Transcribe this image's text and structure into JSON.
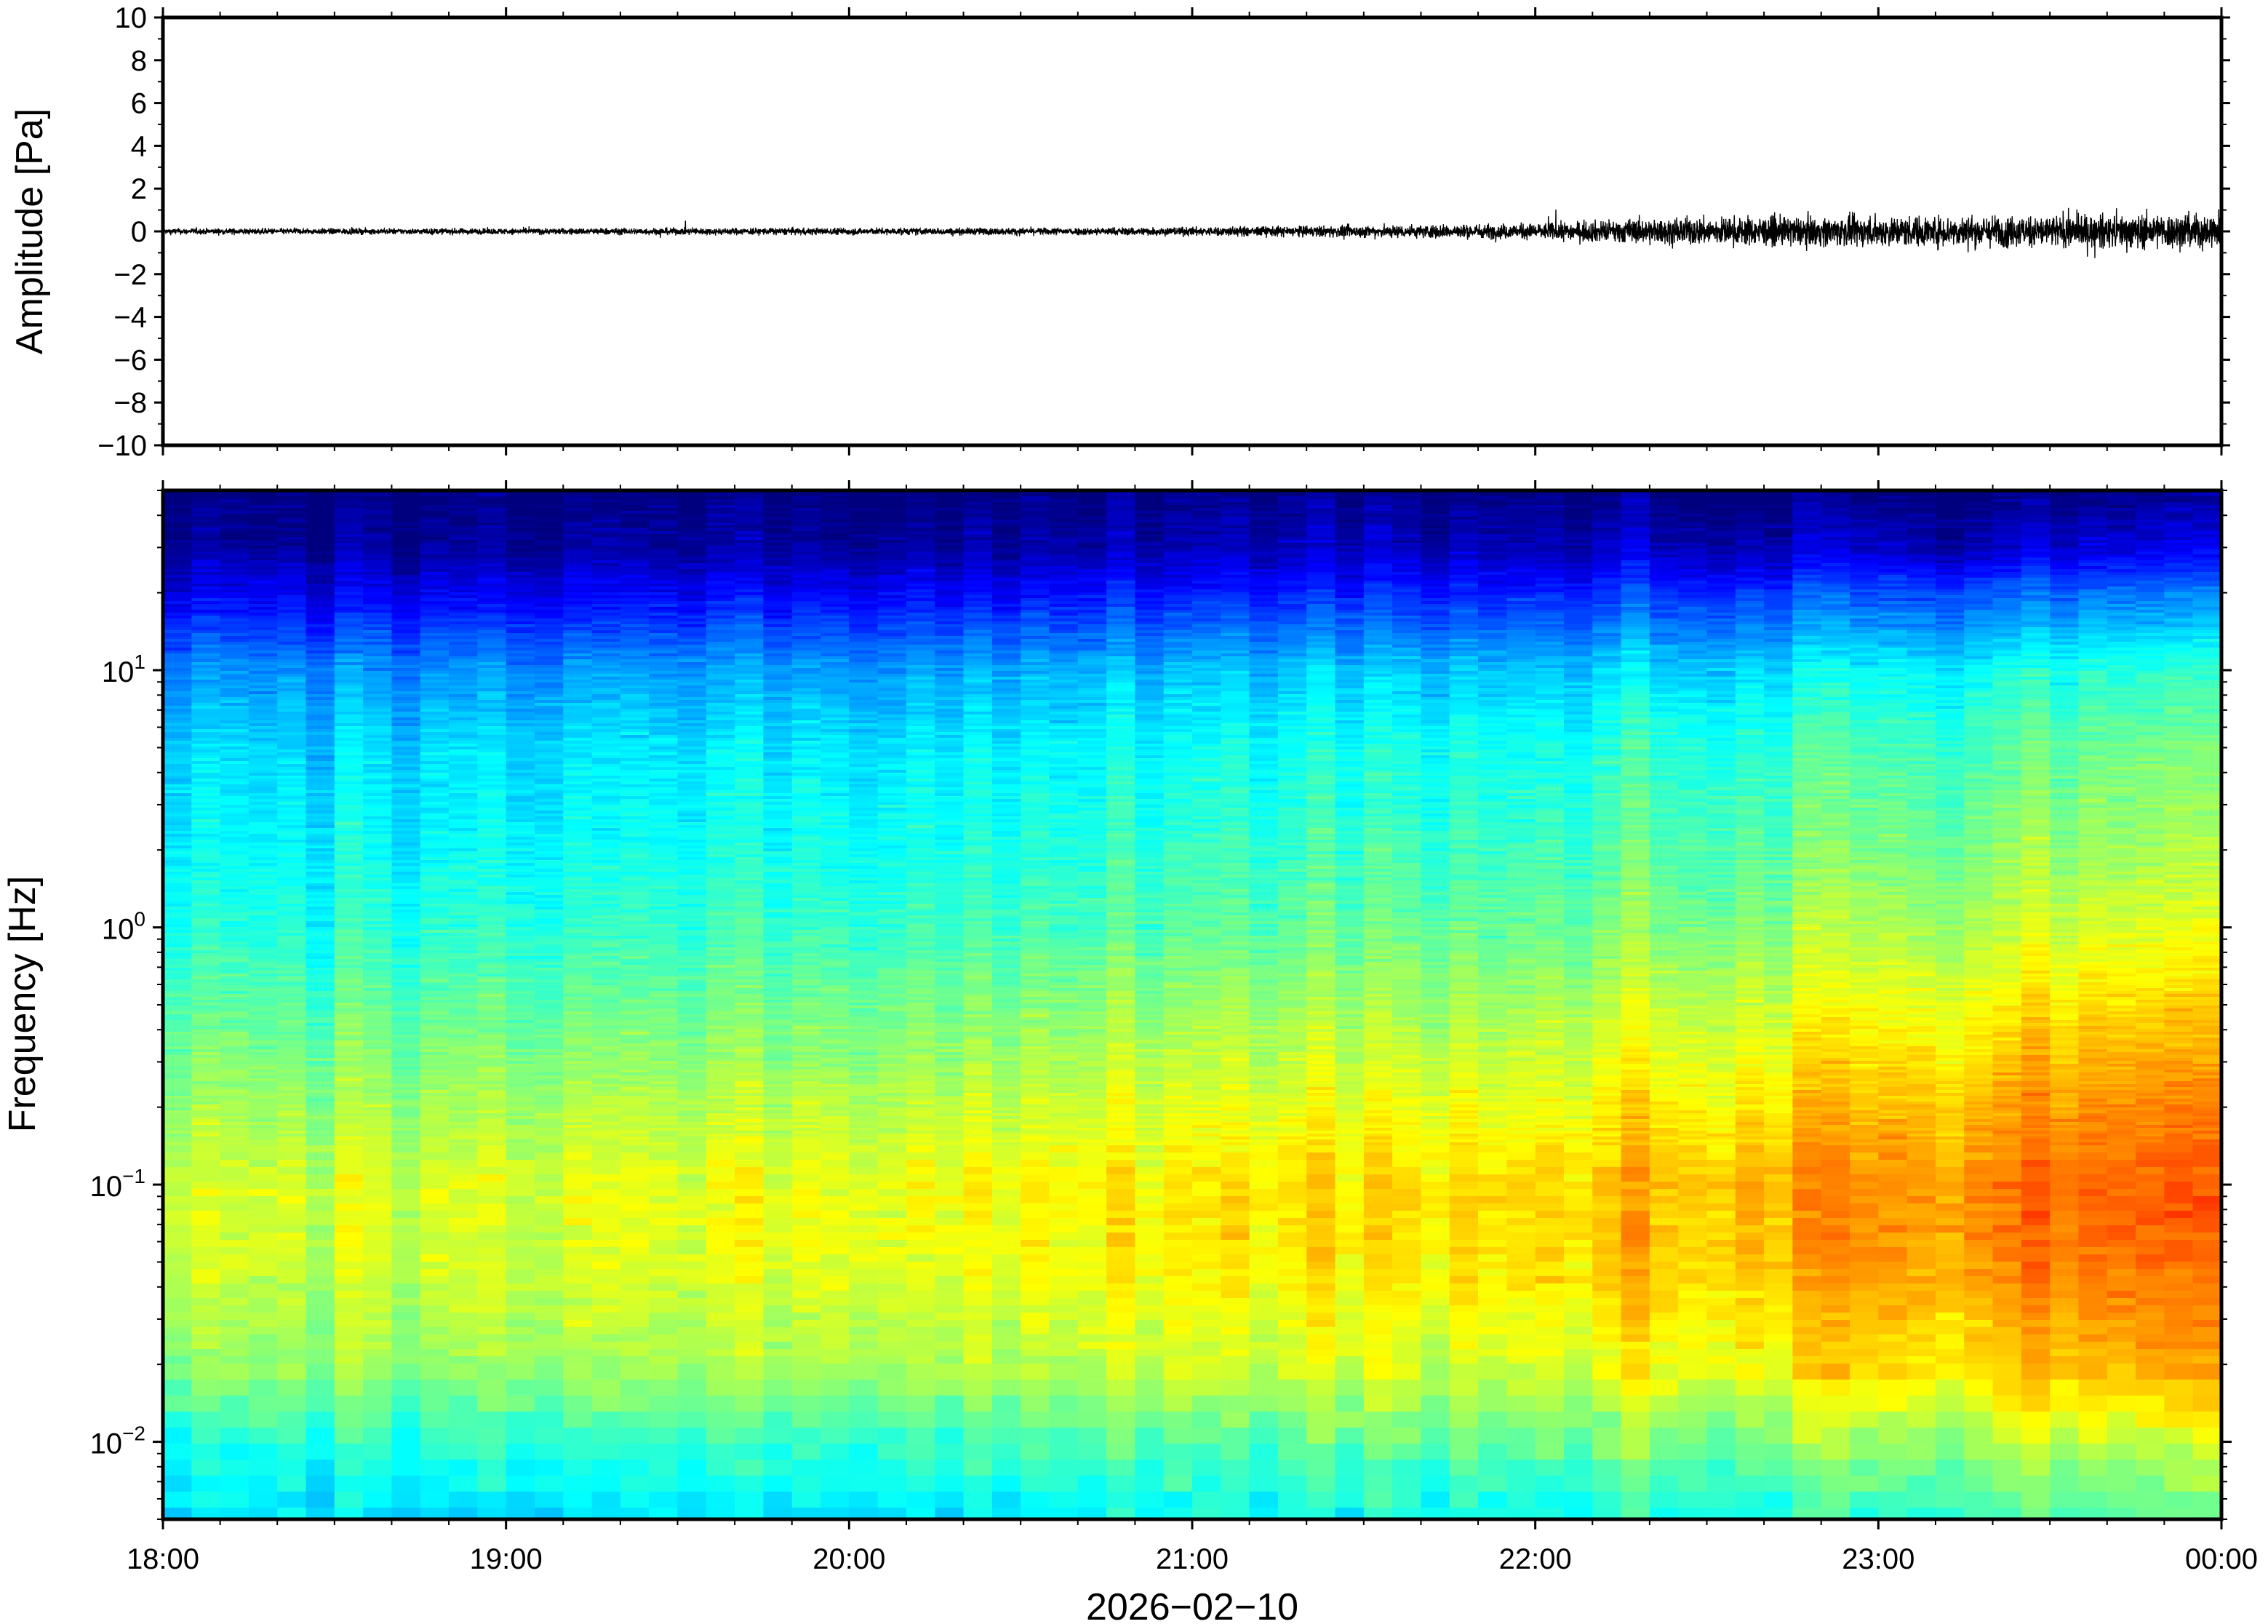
{
  "chart_data": [
    {
      "type": "line",
      "panel": "waveform",
      "ylabel": "Amplitude [Pa]",
      "ylim": [
        -10,
        10
      ],
      "yticks": [
        10,
        8,
        6,
        4,
        2,
        0,
        -2,
        -4,
        -6,
        -8,
        -10
      ],
      "ytick_labels": [
        "10",
        "8",
        "6",
        "4",
        "2",
        "0",
        "−2",
        "−4",
        "−6",
        "−8",
        "−10"
      ],
      "xlim": [
        "18:00",
        "00:00"
      ],
      "grid": false,
      "envelope": {
        "x_hours": [
          0,
          0.5,
          1.0,
          1.5,
          2.0,
          2.5,
          3.0,
          3.5,
          4.0,
          4.25,
          4.5,
          5.0,
          5.5,
          6.0
        ],
        "amplitude_pa": [
          0.3,
          0.3,
          0.3,
          0.35,
          0.35,
          0.35,
          0.45,
          0.6,
          0.8,
          1.2,
          1.4,
          1.5,
          1.6,
          1.8
        ]
      },
      "line_color": "#000000"
    },
    {
      "type": "heatmap",
      "panel": "spectrogram",
      "ylabel": "Frequency [Hz]",
      "yscale": "log",
      "ylim": [
        0.005,
        50
      ],
      "yticks": [
        10,
        1,
        0.1,
        0.01
      ],
      "ytick_labels": [
        {
          "base": "10",
          "exp": "1"
        },
        {
          "base": "10",
          "exp": "0"
        },
        {
          "base": "10",
          "exp": "−1"
        },
        {
          "base": "10",
          "exp": "−2"
        }
      ],
      "xlabel": "2026−02−10",
      "xticks": [
        "18:00",
        "19:00",
        "20:00",
        "21:00",
        "22:00",
        "23:00",
        "00:00"
      ],
      "colormap": "jet",
      "colormap_stops": [
        "#00007f",
        "#0000ff",
        "#007fff",
        "#00ffff",
        "#7fff7f",
        "#ffff00",
        "#ff7f00",
        "#ff0000"
      ],
      "power_profile": {
        "freq_hz": [
          50,
          30,
          20,
          10,
          5,
          2,
          1,
          0.5,
          0.2,
          0.1,
          0.05,
          0.02,
          0.01,
          0.005
        ],
        "power_18h": [
          0.0,
          0.03,
          0.12,
          0.3,
          0.38,
          0.42,
          0.46,
          0.52,
          0.6,
          0.66,
          0.65,
          0.58,
          0.45,
          0.38
        ],
        "power_00h": [
          0.0,
          0.1,
          0.26,
          0.46,
          0.54,
          0.6,
          0.66,
          0.74,
          0.83,
          0.88,
          0.86,
          0.78,
          0.62,
          0.5
        ]
      }
    }
  ]
}
